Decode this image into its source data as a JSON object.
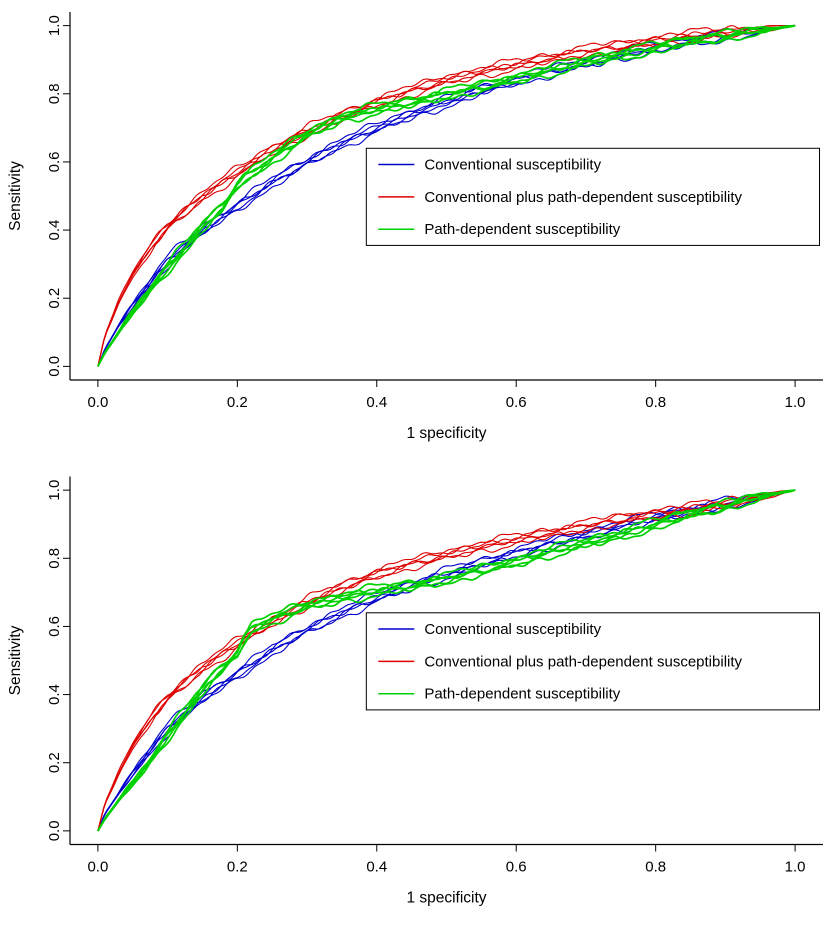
{
  "figure": {
    "background": "#ffffff",
    "description": "Two stacked ROC curve panels comparing susceptibility models"
  },
  "chart_data": [
    {
      "type": "line",
      "title": "",
      "xlabel": "1 specificity",
      "ylabel": "Sensitivity",
      "xlim": [
        0,
        1
      ],
      "ylim": [
        0,
        1
      ],
      "xticks": [
        "0.0",
        "0.2",
        "0.4",
        "0.6",
        "0.8",
        "1.0"
      ],
      "yticks": [
        "0.0",
        "0.2",
        "0.4",
        "0.6",
        "0.8",
        "1.0"
      ],
      "grid": false,
      "replicates_per_series": 5,
      "legend": {
        "position": "right-center",
        "box": {
          "x0": 0.385,
          "x1": 1.035,
          "y0": 0.355,
          "y1": 0.64
        },
        "entries": [
          {
            "label": "Conventional susceptibility",
            "color": "#0000cc"
          },
          {
            "label": "Conventional plus path-dependent susceptibility",
            "color": "#dd0000"
          },
          {
            "label": "Path-dependent susceptibility",
            "color": "#00d000"
          }
        ]
      },
      "series": [
        {
          "name": "Conventional susceptibility",
          "color": "#0000cc",
          "width": 1.1,
          "x": [
            0,
            0.01,
            0.03,
            0.05,
            0.08,
            0.1,
            0.15,
            0.2,
            0.25,
            0.3,
            0.35,
            0.4,
            0.45,
            0.5,
            0.55,
            0.6,
            0.65,
            0.7,
            0.75,
            0.8,
            0.85,
            0.9,
            0.95,
            1.0
          ],
          "y": [
            0,
            0.05,
            0.12,
            0.18,
            0.26,
            0.31,
            0.4,
            0.47,
            0.54,
            0.6,
            0.655,
            0.7,
            0.74,
            0.775,
            0.81,
            0.84,
            0.865,
            0.89,
            0.915,
            0.935,
            0.955,
            0.97,
            0.985,
            1.0
          ]
        },
        {
          "name": "Conventional plus path-dependent susceptibility",
          "color": "#dd0000",
          "width": 1.1,
          "x": [
            0,
            0.01,
            0.03,
            0.05,
            0.08,
            0.1,
            0.15,
            0.2,
            0.25,
            0.3,
            0.35,
            0.4,
            0.45,
            0.5,
            0.55,
            0.6,
            0.65,
            0.7,
            0.75,
            0.8,
            0.85,
            0.9,
            0.95,
            1.0
          ],
          "y": [
            0,
            0.09,
            0.19,
            0.27,
            0.36,
            0.41,
            0.5,
            0.57,
            0.635,
            0.69,
            0.735,
            0.775,
            0.81,
            0.84,
            0.865,
            0.885,
            0.905,
            0.925,
            0.94,
            0.955,
            0.97,
            0.98,
            0.99,
            1.0
          ]
        },
        {
          "name": "Path-dependent susceptibility",
          "color": "#00d000",
          "width": 1.7,
          "x": [
            0,
            0.01,
            0.03,
            0.05,
            0.08,
            0.1,
            0.13,
            0.15,
            0.17,
            0.18,
            0.2,
            0.21,
            0.23,
            0.26,
            0.3,
            0.35,
            0.4,
            0.45,
            0.5,
            0.55,
            0.6,
            0.65,
            0.7,
            0.75,
            0.8,
            0.85,
            0.9,
            0.95,
            1.0
          ],
          "y": [
            0,
            0.04,
            0.1,
            0.16,
            0.24,
            0.29,
            0.36,
            0.41,
            0.45,
            0.47,
            0.53,
            0.555,
            0.58,
            0.625,
            0.68,
            0.73,
            0.755,
            0.775,
            0.8,
            0.82,
            0.845,
            0.87,
            0.895,
            0.915,
            0.935,
            0.955,
            0.97,
            0.985,
            1.0
          ]
        }
      ]
    },
    {
      "type": "line",
      "title": "",
      "xlabel": "1 specificity",
      "ylabel": "Sensitivity",
      "xlim": [
        0,
        1
      ],
      "ylim": [
        0,
        1
      ],
      "xticks": [
        "0.0",
        "0.2",
        "0.4",
        "0.6",
        "0.8",
        "1.0"
      ],
      "yticks": [
        "0.0",
        "0.2",
        "0.4",
        "0.6",
        "0.8",
        "1.0"
      ],
      "grid": false,
      "replicates_per_series": 5,
      "legend": {
        "position": "right-center",
        "box": {
          "x0": 0.385,
          "x1": 1.035,
          "y0": 0.355,
          "y1": 0.64
        },
        "entries": [
          {
            "label": "Conventional susceptibility",
            "color": "#0000cc"
          },
          {
            "label": "Conventional plus path-dependent susceptibility",
            "color": "#dd0000"
          },
          {
            "label": "Path-dependent susceptibility",
            "color": "#00d000"
          }
        ]
      },
      "series": [
        {
          "name": "Conventional susceptibility",
          "color": "#0000cc",
          "width": 1.1,
          "x": [
            0,
            0.01,
            0.03,
            0.05,
            0.08,
            0.1,
            0.15,
            0.2,
            0.25,
            0.3,
            0.35,
            0.4,
            0.45,
            0.5,
            0.55,
            0.6,
            0.65,
            0.7,
            0.75,
            0.8,
            0.85,
            0.9,
            0.95,
            1.0
          ],
          "y": [
            0,
            0.05,
            0.11,
            0.17,
            0.25,
            0.3,
            0.39,
            0.46,
            0.53,
            0.59,
            0.64,
            0.685,
            0.72,
            0.755,
            0.785,
            0.815,
            0.845,
            0.87,
            0.895,
            0.92,
            0.94,
            0.96,
            0.98,
            1.0
          ]
        },
        {
          "name": "Conventional plus path-dependent susceptibility",
          "color": "#dd0000",
          "width": 1.1,
          "x": [
            0,
            0.01,
            0.03,
            0.05,
            0.08,
            0.1,
            0.15,
            0.2,
            0.25,
            0.3,
            0.35,
            0.4,
            0.45,
            0.5,
            0.55,
            0.6,
            0.65,
            0.7,
            0.75,
            0.8,
            0.85,
            0.9,
            0.95,
            1.0
          ],
          "y": [
            0,
            0.08,
            0.17,
            0.25,
            0.34,
            0.39,
            0.48,
            0.55,
            0.615,
            0.67,
            0.715,
            0.755,
            0.785,
            0.81,
            0.835,
            0.855,
            0.875,
            0.895,
            0.915,
            0.93,
            0.945,
            0.96,
            0.98,
            1.0
          ]
        },
        {
          "name": "Path-dependent susceptibility",
          "color": "#00d000",
          "width": 1.7,
          "x": [
            0,
            0.01,
            0.03,
            0.05,
            0.08,
            0.1,
            0.13,
            0.16,
            0.18,
            0.2,
            0.21,
            0.22,
            0.26,
            0.3,
            0.35,
            0.4,
            0.45,
            0.5,
            0.55,
            0.6,
            0.65,
            0.7,
            0.75,
            0.8,
            0.85,
            0.88,
            0.92,
            0.96,
            1.0
          ],
          "y": [
            0,
            0.035,
            0.09,
            0.14,
            0.22,
            0.28,
            0.36,
            0.44,
            0.48,
            0.52,
            0.565,
            0.595,
            0.63,
            0.66,
            0.685,
            0.705,
            0.72,
            0.74,
            0.765,
            0.79,
            0.82,
            0.845,
            0.87,
            0.9,
            0.93,
            0.945,
            0.965,
            0.985,
            1.0
          ]
        }
      ]
    }
  ]
}
